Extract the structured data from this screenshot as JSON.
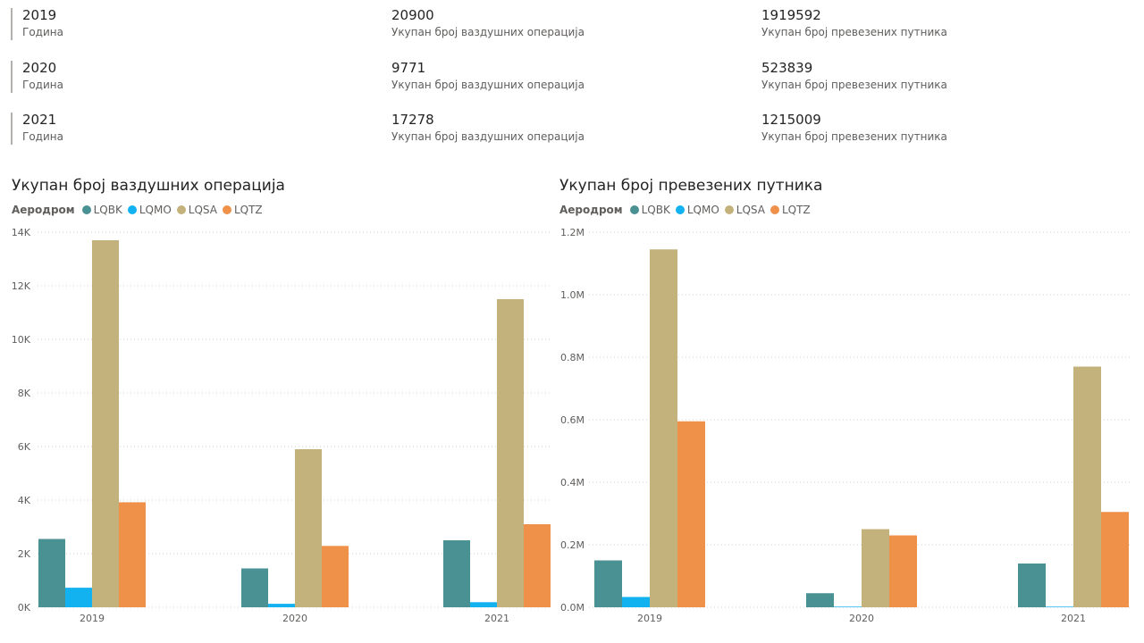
{
  "kpis": [
    {
      "year": "2019",
      "year_label": "Година",
      "ops": "20900",
      "ops_label": "Укупан број ваздушних операција",
      "pax": "1919592",
      "pax_label": "Укупан број превезених путника"
    },
    {
      "year": "2020",
      "year_label": "Година",
      "ops": "9771",
      "ops_label": "Укупан број ваздушних операција",
      "pax": "523839",
      "pax_label": "Укупан број превезених путника"
    },
    {
      "year": "2021",
      "year_label": "Година",
      "ops": "17278",
      "ops_label": "Укупан број ваздушних операција",
      "pax": "1215009",
      "pax_label": "Укупан број превезених путника"
    }
  ],
  "legend": {
    "title": "Аеродром",
    "items": [
      {
        "name": "LQBK",
        "color": "#4a9194"
      },
      {
        "name": "LQMO",
        "color": "#12b1f0"
      },
      {
        "name": "LQSA",
        "color": "#c4b27c"
      },
      {
        "name": "LQTZ",
        "color": "#f0914a"
      }
    ]
  },
  "chart_data": [
    {
      "type": "bar",
      "title": "Укупан број ваздушних операција",
      "categories": [
        "2019",
        "2020",
        "2021"
      ],
      "series": [
        {
          "name": "LQBK",
          "color": "#4a9194",
          "values": [
            2550,
            1450,
            2500
          ]
        },
        {
          "name": "LQMO",
          "color": "#12b1f0",
          "values": [
            730,
            130,
            190
          ]
        },
        {
          "name": "LQSA",
          "color": "#c4b27c",
          "values": [
            13700,
            5900,
            11500
          ]
        },
        {
          "name": "LQTZ",
          "color": "#f0914a",
          "values": [
            3920,
            2290,
            3100
          ]
        }
      ],
      "ylim": [
        0,
        14000
      ],
      "yticks": [
        0,
        2000,
        4000,
        6000,
        8000,
        10000,
        12000,
        14000
      ],
      "ytick_labels": [
        "0K",
        "2K",
        "4K",
        "6K",
        "8K",
        "10K",
        "12K",
        "14K"
      ],
      "grid": true
    },
    {
      "type": "bar",
      "title": "Укупан број превезених путника",
      "categories": [
        "2019",
        "2020",
        "2021"
      ],
      "series": [
        {
          "name": "LQBK",
          "color": "#4a9194",
          "values": [
            150000,
            45000,
            140000
          ]
        },
        {
          "name": "LQMO",
          "color": "#12b1f0",
          "values": [
            33000,
            2000,
            2000
          ]
        },
        {
          "name": "LQSA",
          "color": "#c4b27c",
          "values": [
            1145000,
            250000,
            770000
          ]
        },
        {
          "name": "LQTZ",
          "color": "#f0914a",
          "values": [
            595000,
            230000,
            305000
          ]
        }
      ],
      "ylim": [
        0,
        1200000
      ],
      "yticks": [
        0,
        200000,
        400000,
        600000,
        800000,
        1000000,
        1200000
      ],
      "ytick_labels": [
        "0.0M",
        "0.2M",
        "0.4M",
        "0.6M",
        "0.8M",
        "1.0M",
        "1.2M"
      ],
      "grid": true
    }
  ]
}
